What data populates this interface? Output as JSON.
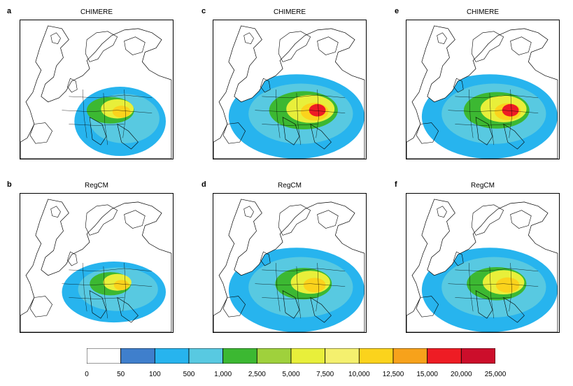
{
  "panels": [
    {
      "letter": "a",
      "title": "CHIMERE",
      "intensity": 0.55,
      "coverage": "partial-west"
    },
    {
      "letter": "c",
      "title": "CHIMERE",
      "intensity": 0.9,
      "coverage": "wide"
    },
    {
      "letter": "e",
      "title": "CHIMERE",
      "intensity": 0.85,
      "coverage": "wide"
    },
    {
      "letter": "b",
      "title": "RegCM",
      "intensity": 0.45,
      "coverage": "south"
    },
    {
      "letter": "d",
      "title": "RegCM",
      "intensity": 0.7,
      "coverage": "wide"
    },
    {
      "letter": "f",
      "title": "RegCM",
      "intensity": 0.75,
      "coverage": "wide"
    }
  ],
  "chart_data": {
    "type": "heatmap",
    "colorbar": {
      "ticks": [
        "0",
        "50",
        "100",
        "500",
        "1,000",
        "2,500",
        "5,000",
        "7,500",
        "10,000",
        "12,500",
        "15,000",
        "20,000",
        "25,000"
      ],
      "colors": [
        "#ffffff",
        "#3f7fcc",
        "#27b4ee",
        "#58c9e1",
        "#3cb832",
        "#9fd13c",
        "#e8ef3a",
        "#f4f06e",
        "#fbd31c",
        "#f7a21b",
        "#ee1c24",
        "#cc0e2b"
      ]
    }
  }
}
